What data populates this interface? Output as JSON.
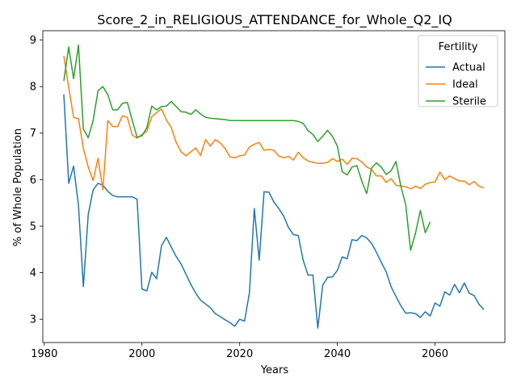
{
  "chart_data": {
    "type": "line",
    "title": "Score_2_in_RELIGIOUS_ATTENDANCE_for_Whole_Q2_IQ",
    "xlabel": "Years",
    "ylabel": "% of Whole Population",
    "xlim": [
      1979.7,
      2074.3
    ],
    "ylim": [
      2.5,
      9.2
    ],
    "xticks": [
      1980,
      2000,
      2020,
      2040,
      2060
    ],
    "yticks": [
      3,
      4,
      5,
      6,
      7,
      8,
      9
    ],
    "grid": false,
    "legend": {
      "title": "Fertility",
      "placement": "top-right"
    },
    "series": [
      {
        "name": "Actual",
        "color": "#1f77b4",
        "x": [
          1984,
          1985,
          1986,
          1987,
          1988,
          1989,
          1990,
          1991,
          1992,
          1993,
          1994,
          1995,
          1996,
          1997,
          1998,
          1999,
          2000,
          2001,
          2002,
          2003,
          2004,
          2005,
          2006,
          2007,
          2008,
          2009,
          2010,
          2011,
          2012,
          2013,
          2014,
          2015,
          2016,
          2017,
          2018,
          2019,
          2020,
          2021,
          2022,
          2023,
          2024,
          2025,
          2026,
          2027,
          2028,
          2029,
          2030,
          2031,
          2032,
          2033,
          2034,
          2035,
          2036,
          2037,
          2038,
          2039,
          2040,
          2041,
          2042,
          2043,
          2044,
          2045,
          2046,
          2047,
          2048,
          2049,
          2050,
          2051,
          2052,
          2053,
          2054,
          2055,
          2056,
          2057,
          2058,
          2059,
          2060,
          2061,
          2062,
          2063,
          2064,
          2065,
          2066,
          2067,
          2068,
          2069,
          2070
        ],
        "values": [
          7.83,
          5.92,
          6.29,
          5.45,
          3.7,
          5.25,
          5.78,
          5.92,
          5.88,
          5.75,
          5.66,
          5.63,
          5.63,
          5.63,
          5.63,
          5.58,
          3.65,
          3.61,
          4.01,
          3.87,
          4.58,
          4.76,
          4.55,
          4.35,
          4.19,
          3.97,
          3.75,
          3.56,
          3.41,
          3.33,
          3.25,
          3.12,
          3.06,
          2.99,
          2.93,
          2.85,
          3.0,
          2.96,
          3.57,
          5.38,
          4.27,
          5.74,
          5.73,
          5.52,
          5.38,
          5.22,
          4.97,
          4.82,
          4.8,
          4.27,
          3.95,
          3.95,
          2.81,
          3.73,
          3.9,
          3.91,
          4.05,
          4.34,
          4.3,
          4.71,
          4.69,
          4.8,
          4.75,
          4.63,
          4.44,
          4.22,
          4.02,
          3.7,
          3.49,
          3.29,
          3.13,
          3.14,
          3.12,
          3.04,
          3.16,
          3.07,
          3.35,
          3.28,
          3.59,
          3.52,
          3.75,
          3.57,
          3.78,
          3.56,
          3.51,
          3.32,
          3.21
        ]
      },
      {
        "name": "Ideal",
        "color": "#ff7f0e",
        "x": [
          1984,
          1985,
          1986,
          1987,
          1988,
          1989,
          1990,
          1991,
          1992,
          1993,
          1994,
          1995,
          1996,
          1997,
          1998,
          1999,
          2000,
          2001,
          2002,
          2003,
          2004,
          2005,
          2006,
          2007,
          2008,
          2009,
          2010,
          2011,
          2012,
          2013,
          2014,
          2015,
          2016,
          2017,
          2018,
          2019,
          2020,
          2021,
          2022,
          2023,
          2024,
          2025,
          2026,
          2027,
          2028,
          2029,
          2030,
          2031,
          2032,
          2033,
          2034,
          2035,
          2036,
          2037,
          2038,
          2039,
          2040,
          2041,
          2042,
          2043,
          2044,
          2045,
          2046,
          2047,
          2048,
          2049,
          2050,
          2051,
          2052,
          2053,
          2054,
          2055,
          2056,
          2057,
          2058,
          2059,
          2060,
          2061,
          2062,
          2063,
          2064,
          2065,
          2066,
          2067,
          2068,
          2069,
          2070
        ],
        "values": [
          8.66,
          7.98,
          7.34,
          7.31,
          6.67,
          6.27,
          5.98,
          6.46,
          5.78,
          7.27,
          7.14,
          7.14,
          7.37,
          7.34,
          6.96,
          6.89,
          6.97,
          7.04,
          7.35,
          7.44,
          7.52,
          7.28,
          7.12,
          6.8,
          6.6,
          6.51,
          6.6,
          6.68,
          6.52,
          6.86,
          6.72,
          6.86,
          6.79,
          6.67,
          6.49,
          6.47,
          6.51,
          6.53,
          6.7,
          6.76,
          6.8,
          6.63,
          6.65,
          6.63,
          6.51,
          6.47,
          6.5,
          6.42,
          6.59,
          6.47,
          6.4,
          6.37,
          6.35,
          6.35,
          6.37,
          6.45,
          6.39,
          6.44,
          6.33,
          6.46,
          6.45,
          6.38,
          6.27,
          6.22,
          6.08,
          6.08,
          5.94,
          6.02,
          5.88,
          5.86,
          5.85,
          5.8,
          5.86,
          5.81,
          5.9,
          5.94,
          5.95,
          6.16,
          6.0,
          6.08,
          6.02,
          5.97,
          5.97,
          5.89,
          5.96,
          5.86,
          5.82
        ]
      },
      {
        "name": "Sterile",
        "color": "#2ca02c",
        "x": [
          1984,
          1985,
          1986,
          1987,
          1988,
          1989,
          1990,
          1991,
          1992,
          1993,
          1994,
          1995,
          1996,
          1997,
          1998,
          1999,
          2000,
          2001,
          2002,
          2003,
          2004,
          2005,
          2006,
          2007,
          2008,
          2009,
          2010,
          2011,
          2012,
          2013,
          2014,
          2015,
          2016,
          2017,
          2018,
          2019,
          2020,
          2021,
          2022,
          2023,
          2024,
          2025,
          2026,
          2027,
          2028,
          2029,
          2030,
          2031,
          2032,
          2033,
          2034,
          2035,
          2036,
          2037,
          2038,
          2039,
          2040,
          2041,
          2042,
          2043,
          2044,
          2045,
          2046,
          2047,
          2048,
          2049,
          2050,
          2051,
          2052,
          2053,
          2054,
          2055,
          2056,
          2057,
          2058,
          2059
        ],
        "values": [
          8.12,
          8.85,
          8.17,
          8.89,
          7.09,
          6.9,
          7.27,
          7.91,
          8.0,
          7.83,
          7.5,
          7.5,
          7.64,
          7.66,
          7.28,
          6.91,
          6.94,
          7.12,
          7.58,
          7.5,
          7.57,
          7.58,
          7.68,
          7.57,
          7.46,
          7.45,
          7.4,
          7.5,
          7.41,
          7.34,
          7.32,
          7.31,
          7.3,
          7.29,
          7.27,
          7.27,
          7.27,
          7.27,
          7.27,
          7.27,
          7.27,
          7.27,
          7.27,
          7.27,
          7.27,
          7.27,
          7.27,
          7.27,
          7.25,
          7.21,
          7.05,
          6.97,
          6.82,
          6.93,
          7.06,
          6.93,
          6.72,
          6.17,
          6.1,
          6.27,
          6.3,
          5.97,
          5.7,
          6.25,
          6.36,
          6.27,
          6.11,
          6.19,
          6.39,
          5.86,
          5.46,
          4.48,
          4.85,
          5.34,
          4.86,
          5.09
        ]
      }
    ]
  }
}
